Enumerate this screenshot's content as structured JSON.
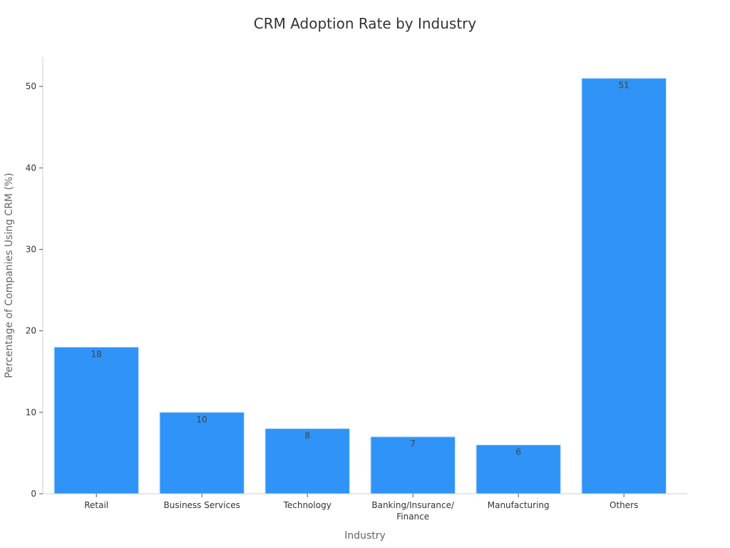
{
  "chart_data": {
    "type": "bar",
    "title": "CRM Adoption Rate by Industry",
    "xlabel": "Industry",
    "ylabel": "Percentage of Companies Using CRM (%)",
    "categories": [
      "Retail",
      "Business Services",
      "Technology",
      "Banking/Insurance/\nFinance",
      "Manufacturing",
      "Others"
    ],
    "values": [
      18,
      10,
      8,
      7,
      6,
      51
    ],
    "data_labels": [
      "18",
      "10",
      "8",
      "7",
      "6",
      "51"
    ],
    "y_ticks": [
      0,
      10,
      20,
      30,
      40,
      50
    ],
    "ylim": [
      0,
      53.6
    ],
    "grid": false,
    "legend": "none",
    "colors": {
      "bar": "#2f93f7",
      "bar_edge": "#c6e0fb"
    }
  }
}
